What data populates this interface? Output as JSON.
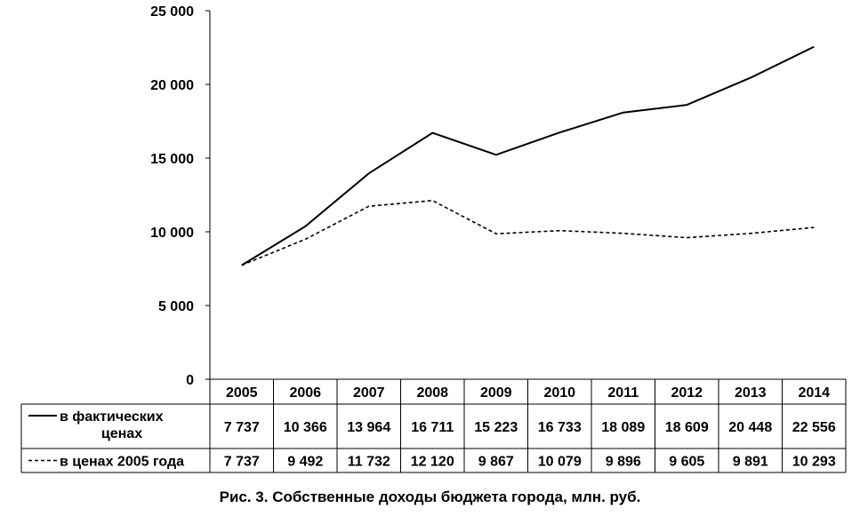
{
  "chart_data": {
    "type": "line",
    "title": "",
    "caption": "Рис. 3. Собственные доходы бюджета города, млн. руб.",
    "categories": [
      "2005",
      "2006",
      "2007",
      "2008",
      "2009",
      "2010",
      "2011",
      "2012",
      "2013",
      "2014"
    ],
    "ylim": [
      0,
      25000
    ],
    "yticks": [
      0,
      5000,
      10000,
      15000,
      20000,
      25000
    ],
    "ytick_labels": [
      "0",
      "5 000",
      "10 000",
      "15 000",
      "20 000",
      "25 000"
    ],
    "grid": false,
    "legend_placement": "data-table-left",
    "series": [
      {
        "name": "в фактических ценах",
        "style": "solid",
        "color": "#000000",
        "values": [
          7737,
          10366,
          13964,
          16711,
          15223,
          16733,
          18089,
          18609,
          20448,
          22556
        ],
        "value_labels": [
          "7 737",
          "10 366",
          "13 964",
          "16 711",
          "15 223",
          "16 733",
          "18 089",
          "18 609",
          "20 448",
          "22 556"
        ]
      },
      {
        "name": "в ценах 2005 года",
        "style": "dashed",
        "color": "#000000",
        "values": [
          7737,
          9492,
          11732,
          12120,
          9867,
          10079,
          9896,
          9605,
          9891,
          10293
        ],
        "value_labels": [
          "7 737",
          "9 492",
          "11 732",
          "12 120",
          "9 867",
          "10 079",
          "9 896",
          "9 605",
          "9 891",
          "10 293"
        ]
      }
    ]
  }
}
